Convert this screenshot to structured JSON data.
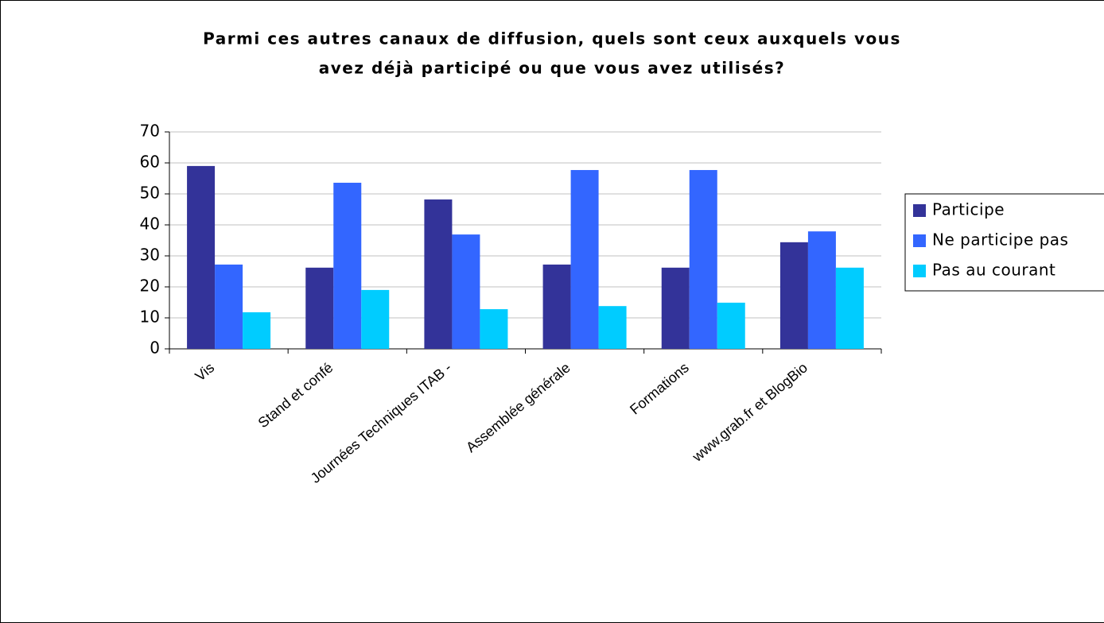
{
  "chart_data": {
    "type": "bar",
    "title": [
      "Parmi ces autres canaux de diffusion, quels sont ceux auxquels vous",
      "avez déjà participé ou que vous avez utilisés?"
    ],
    "categories": [
      "Vis",
      "Stand et confé",
      "Journées Techniques ITAB -",
      "Assemblée générale",
      "Formations",
      "www.grab.fr et BlogBio"
    ],
    "series": [
      {
        "name": "Participe",
        "color": "#333399",
        "values": [
          59,
          26.2,
          48.2,
          27.2,
          26.2,
          34.4
        ]
      },
      {
        "name": "Ne participe pas",
        "color": "#3366ff",
        "values": [
          27.2,
          53.6,
          36.9,
          57.7,
          57.7,
          37.9
        ]
      },
      {
        "name": "Pas au courant",
        "color": "#00ccff",
        "values": [
          11.8,
          19,
          12.8,
          13.8,
          14.9,
          26.2
        ]
      }
    ],
    "ylim": [
      0,
      70
    ],
    "yticks": [
      0,
      10,
      20,
      30,
      40,
      50,
      60,
      70
    ],
    "grid": true,
    "legend": "right"
  }
}
